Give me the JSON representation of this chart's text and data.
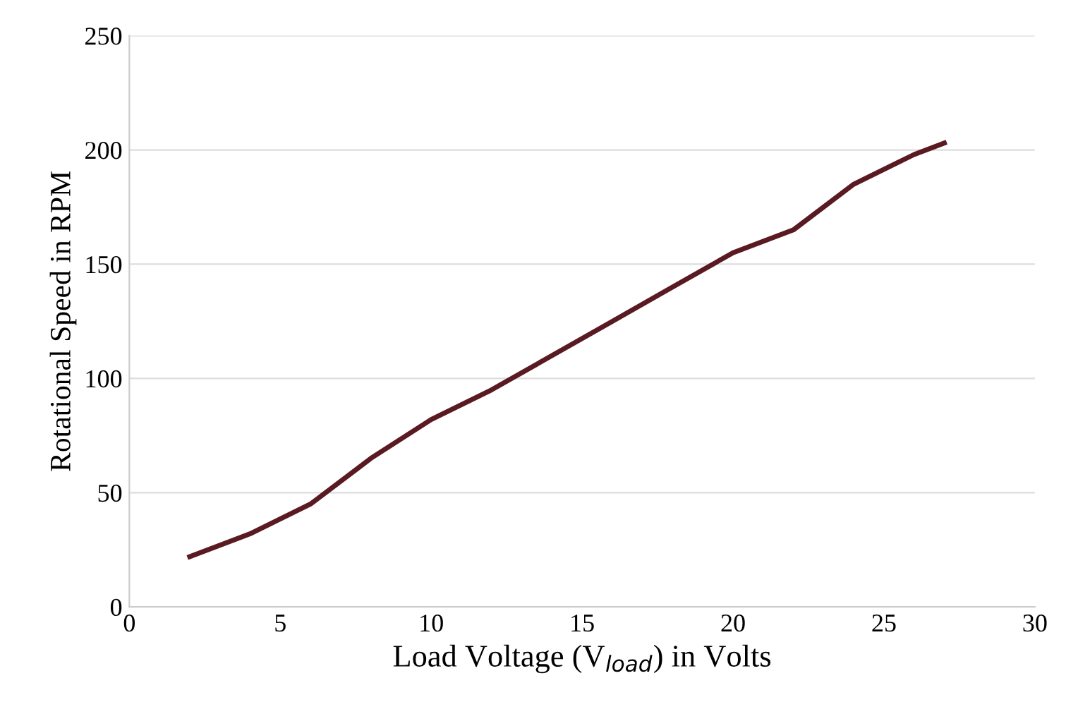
{
  "chart_data": {
    "type": "line",
    "xlabel": "Load Voltage (V$_{load}$) in Volts",
    "ylabel": "Rotational Speed in RPM",
    "x": [
      2,
      4,
      6,
      8,
      10,
      12,
      14,
      16,
      18,
      20,
      22,
      24,
      26,
      27
    ],
    "series": [
      {
        "color": "#5a1a22",
        "values": [
          22,
          32,
          45,
          65,
          82,
          95,
          110,
          125,
          140,
          155,
          165,
          185,
          198,
          203
        ]
      }
    ],
    "xlim": [
      0,
      30
    ],
    "xticks": [
      0,
      5,
      10,
      15,
      20,
      25,
      30
    ],
    "ylim": [
      0,
      250
    ],
    "yticks": [
      0,
      50,
      100,
      150,
      200,
      250
    ],
    "grid": "y",
    "marker": "none",
    "line_style": "solid"
  }
}
